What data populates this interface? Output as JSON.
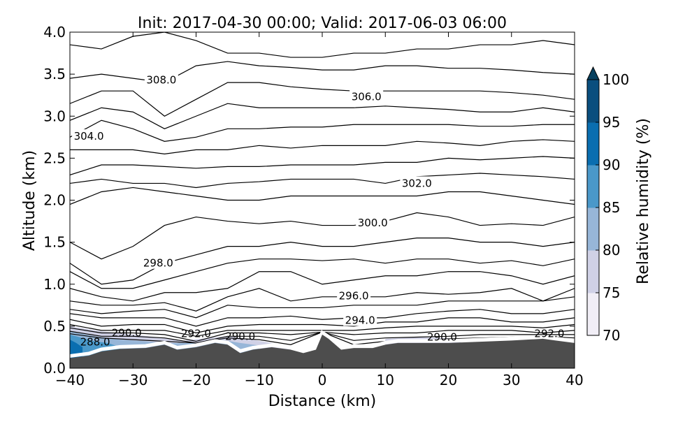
{
  "chart_data": {
    "type": "contour",
    "title": "Init: 2017-04-30 00:00; Valid: 2017-06-03 06:00",
    "xlabel": "Distance (km)",
    "ylabel": "Altitude (km)",
    "xlim": [
      -40,
      40
    ],
    "ylim": [
      0,
      4
    ],
    "xticks": [
      -40,
      -30,
      -20,
      -10,
      0,
      10,
      20,
      30,
      40
    ],
    "xtick_labels": [
      "−40",
      "−30",
      "−20",
      "−10",
      "0",
      "10",
      "20",
      "30",
      "40"
    ],
    "yticks": [
      0,
      0.5,
      1,
      1.5,
      2,
      2.5,
      3,
      3.5,
      4
    ],
    "ytick_labels": [
      "0.0",
      "0.5",
      "1.0",
      "1.5",
      "2.0",
      "2.5",
      "3.0",
      "3.5",
      "4.0"
    ],
    "grid": false,
    "contour_x": [
      -40,
      -35,
      -30,
      -25,
      -20,
      -15,
      -10,
      -5,
      0,
      5,
      10,
      15,
      20,
      25,
      30,
      35,
      40
    ],
    "contours": [
      [
        3.85,
        3.8,
        3.95,
        4.0,
        3.9,
        3.75,
        3.75,
        3.7,
        3.7,
        3.75,
        3.75,
        3.8,
        3.8,
        3.85,
        3.85,
        3.9,
        3.85
      ],
      [
        3.45,
        3.5,
        3.45,
        3.4,
        3.6,
        3.65,
        3.6,
        3.58,
        3.55,
        3.55,
        3.6,
        3.6,
        3.57,
        3.57,
        3.55,
        3.52,
        3.5
      ],
      [
        3.15,
        3.3,
        3.3,
        3.0,
        3.2,
        3.4,
        3.4,
        3.35,
        3.32,
        3.3,
        3.3,
        3.3,
        3.3,
        3.3,
        3.28,
        3.25,
        3.2
      ],
      [
        2.95,
        3.1,
        3.05,
        2.85,
        3.0,
        3.15,
        3.1,
        3.1,
        3.1,
        3.1,
        3.12,
        3.1,
        3.08,
        3.05,
        3.05,
        3.1,
        3.05
      ],
      [
        2.75,
        2.95,
        2.85,
        2.7,
        2.75,
        2.85,
        2.85,
        2.87,
        2.87,
        2.9,
        2.9,
        2.9,
        2.9,
        2.88,
        2.88,
        2.9,
        2.9
      ],
      [
        2.6,
        2.6,
        2.6,
        2.55,
        2.6,
        2.6,
        2.65,
        2.62,
        2.65,
        2.65,
        2.65,
        2.7,
        2.68,
        2.65,
        2.7,
        2.72,
        2.7
      ],
      [
        2.3,
        2.42,
        2.42,
        2.4,
        2.38,
        2.4,
        2.4,
        2.42,
        2.42,
        2.42,
        2.45,
        2.45,
        2.5,
        2.48,
        2.5,
        2.52,
        2.5
      ],
      [
        2.2,
        2.25,
        2.2,
        2.2,
        2.15,
        2.2,
        2.22,
        2.25,
        2.25,
        2.25,
        2.2,
        2.28,
        2.3,
        2.32,
        2.3,
        2.28,
        2.25
      ],
      [
        1.95,
        2.1,
        2.15,
        2.1,
        2.05,
        2.0,
        2.0,
        2.05,
        2.05,
        2.05,
        2.05,
        2.05,
        2.1,
        2.1,
        2.05,
        2.0,
        1.95
      ],
      [
        1.5,
        1.3,
        1.45,
        1.7,
        1.8,
        1.75,
        1.72,
        1.75,
        1.7,
        1.7,
        1.75,
        1.85,
        1.8,
        1.7,
        1.72,
        1.7,
        1.8
      ],
      [
        1.25,
        1.0,
        1.05,
        1.25,
        1.35,
        1.45,
        1.45,
        1.5,
        1.45,
        1.45,
        1.5,
        1.55,
        1.55,
        1.5,
        1.5,
        1.45,
        1.5
      ],
      [
        1.15,
        0.95,
        0.95,
        1.05,
        1.15,
        1.25,
        1.3,
        1.3,
        1.28,
        1.3,
        1.25,
        1.3,
        1.3,
        1.25,
        1.28,
        1.22,
        1.3
      ],
      [
        0.95,
        0.85,
        0.8,
        0.9,
        0.9,
        0.95,
        1.15,
        1.15,
        1.0,
        1.05,
        1.1,
        1.1,
        1.15,
        1.15,
        1.1,
        1.0,
        1.1
      ],
      [
        0.8,
        0.75,
        0.75,
        0.78,
        0.68,
        0.85,
        0.95,
        0.8,
        0.85,
        0.85,
        0.85,
        0.9,
        0.88,
        0.9,
        0.95,
        0.8,
        0.95
      ],
      [
        0.7,
        0.65,
        0.68,
        0.7,
        0.6,
        0.75,
        0.72,
        0.72,
        0.72,
        0.75,
        0.75,
        0.75,
        0.8,
        0.8,
        0.8,
        0.8,
        0.85
      ],
      [
        0.65,
        0.6,
        0.6,
        0.6,
        0.5,
        0.6,
        0.6,
        0.62,
        0.58,
        0.6,
        0.6,
        0.65,
        0.68,
        0.7,
        0.65,
        0.65,
        0.7
      ],
      [
        0.58,
        0.5,
        0.52,
        0.52,
        0.42,
        0.5,
        0.52,
        0.52,
        0.52,
        0.5,
        0.55,
        0.55,
        0.6,
        0.6,
        0.55,
        0.55,
        0.6
      ],
      [
        0.52,
        0.45,
        0.45,
        0.45,
        0.38,
        0.45,
        0.45,
        0.45,
        0.45,
        0.45,
        0.48,
        0.5,
        0.5,
        0.5,
        0.5,
        0.48,
        0.52
      ],
      [
        0.48,
        0.42,
        0.42,
        0.4,
        0.32,
        0.42,
        0.42,
        0.4,
        0.43,
        0.4,
        0.42,
        0.42,
        0.45,
        0.45,
        0.45,
        0.42,
        0.45
      ],
      [
        0.44,
        0.38,
        0.38,
        0.36,
        0.3,
        0.38,
        0.38,
        0.33,
        0.42,
        0.33,
        0.36,
        0.37,
        0.38,
        0.4,
        0.4,
        0.4,
        0.4
      ],
      [
        0.41,
        0.36,
        0.34,
        0.32,
        0.3,
        0.36,
        0.34,
        0.28,
        0.41,
        0.28,
        0.32,
        0.33,
        0.35,
        0.36,
        0.37,
        0.38,
        0.36
      ]
    ],
    "contour_labels": [
      {
        "text": "308.0",
        "x": -25.5,
        "y": 3.43
      },
      {
        "text": "306.0",
        "x": 7,
        "y": 3.23
      },
      {
        "text": "304.0",
        "x": -37,
        "y": 2.76
      },
      {
        "text": "302.0",
        "x": 15,
        "y": 2.2
      },
      {
        "text": "300.0",
        "x": 8,
        "y": 1.73
      },
      {
        "text": "298.0",
        "x": -26,
        "y": 1.25
      },
      {
        "text": "296.0",
        "x": 5,
        "y": 0.86
      },
      {
        "text": "294.0",
        "x": 6,
        "y": 0.57
      },
      {
        "text": "292.0",
        "x": -20,
        "y": 0.41
      },
      {
        "text": "292.0",
        "x": 36,
        "y": 0.41
      },
      {
        "text": "290.0",
        "x": -31,
        "y": 0.42
      },
      {
        "text": "290.0",
        "x": -13,
        "y": 0.38
      },
      {
        "text": "290.0",
        "x": 19,
        "y": 0.37
      },
      {
        "text": "288.0",
        "x": -36,
        "y": 0.31
      }
    ],
    "terrain": {
      "x": [
        -40,
        -37,
        -35,
        -32,
        -28,
        -25,
        -23,
        -20,
        -17,
        -15,
        -13,
        -11,
        -8,
        -5,
        -3,
        -1,
        0,
        1,
        3,
        5,
        8,
        10,
        12,
        20,
        30,
        35,
        37,
        40
      ],
      "alt": [
        0.12,
        0.15,
        0.2,
        0.23,
        0.24,
        0.28,
        0.22,
        0.25,
        0.3,
        0.28,
        0.18,
        0.22,
        0.25,
        0.22,
        0.18,
        0.22,
        0.4,
        0.35,
        0.22,
        0.24,
        0.24,
        0.28,
        0.3,
        0.3,
        0.33,
        0.35,
        0.33,
        0.3
      ]
    },
    "humidity_fill": [
      {
        "rh": 75,
        "x": [
          -40,
          -35,
          -30,
          -25,
          -22,
          -18,
          -15,
          -12,
          -8,
          -5
        ],
        "top": [
          0.5,
          0.44,
          0.4,
          0.36,
          0.33,
          0.36,
          0.38,
          0.35,
          0.3,
          0.24
        ]
      },
      {
        "rh": 80,
        "x": [
          -40,
          -36,
          -32,
          -28,
          -25,
          -20,
          -16,
          -13,
          -10
        ],
        "top": [
          0.44,
          0.38,
          0.34,
          0.32,
          0.3,
          0.3,
          0.34,
          0.3,
          0.27
        ]
      },
      {
        "rh": 85,
        "x": [
          -40,
          -38,
          -36,
          -34,
          -32
        ],
        "top": [
          0.4,
          0.36,
          0.32,
          0.3,
          0.25
        ]
      },
      {
        "rh": 90,
        "x": [
          -40,
          -39,
          -38
        ],
        "top": [
          0.34,
          0.3,
          0.25
        ]
      },
      {
        "rh": 75,
        "x": [
          10,
          15,
          20,
          22
        ],
        "top": [
          0.35,
          0.37,
          0.36,
          0.32
        ]
      }
    ],
    "colorbar": {
      "label": "Relative humidity (%)",
      "levels": [
        70,
        75,
        80,
        85,
        90,
        95,
        100
      ],
      "tick_labels": [
        "70",
        "75",
        "80",
        "85",
        "90",
        "95",
        "100"
      ],
      "colors": [
        "#f1eef6",
        "#d0d1e6",
        "#97b6d8",
        "#4a98c9",
        "#0a6eb0",
        "#0a4e7e"
      ],
      "extend_color": "#08415f",
      "extend": "max"
    },
    "terrain_color": "#4d4d4d"
  }
}
